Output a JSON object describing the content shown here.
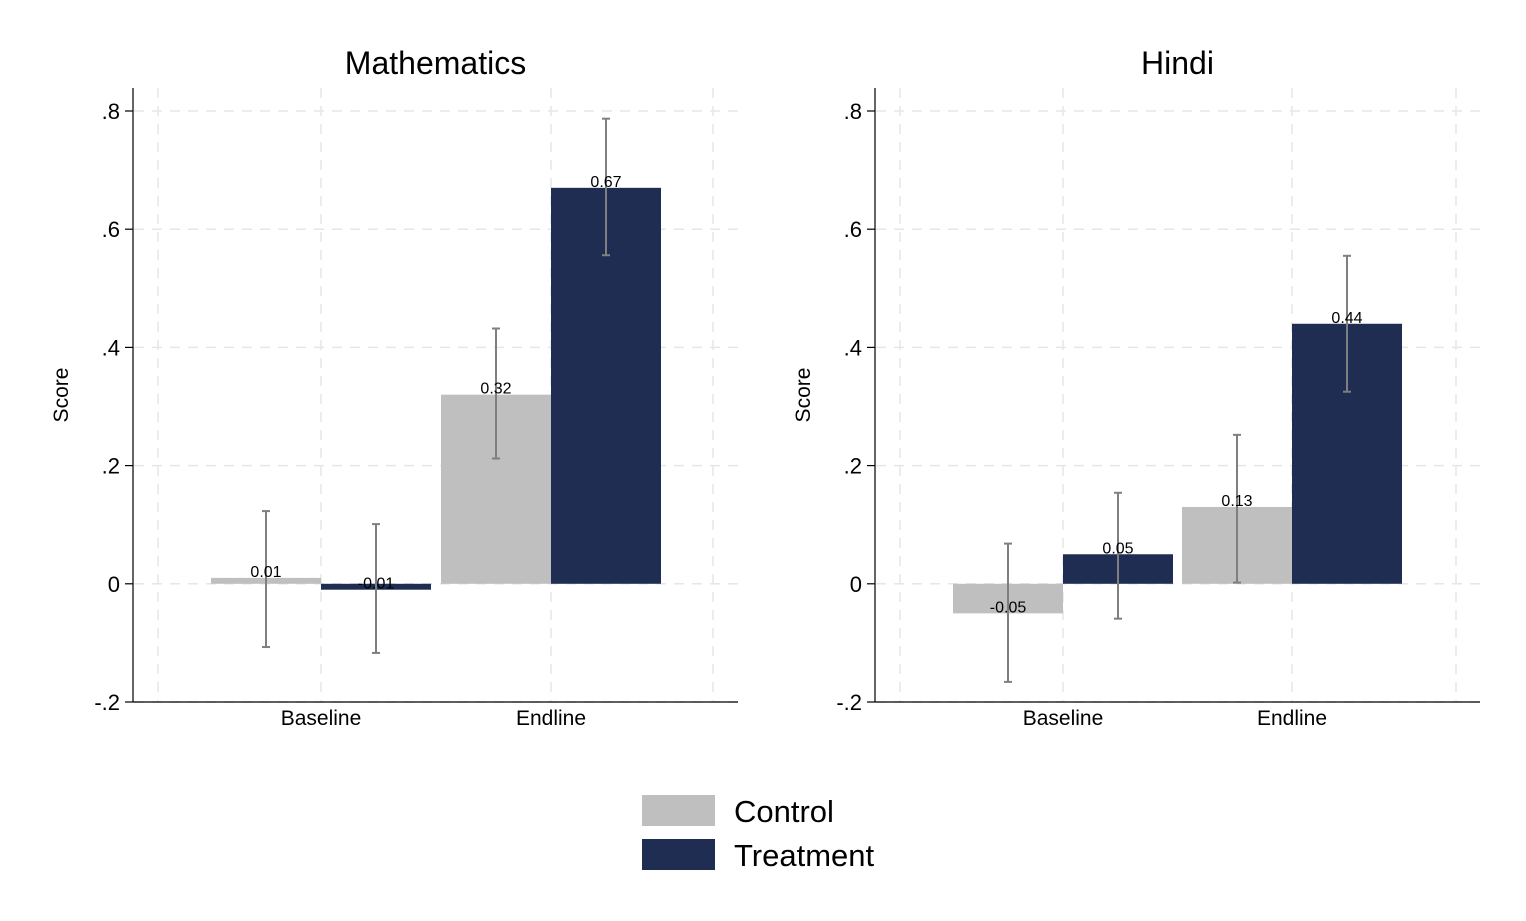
{
  "chart_data": [
    {
      "type": "bar",
      "title": "Mathematics",
      "ylabel": "Score",
      "xlabel": "",
      "categories": [
        "Baseline",
        "Endline"
      ],
      "ylim": [
        -0.2,
        0.8
      ],
      "yticks": [
        -0.2,
        0,
        0.2,
        0.4,
        0.6,
        0.8
      ],
      "ytick_labels": [
        "-.2",
        "0",
        ".2",
        ".4",
        ".6",
        ".8"
      ],
      "grid": true,
      "series": [
        {
          "name": "Control",
          "values": [
            0.01,
            0.32
          ],
          "labels": [
            "0.01",
            "0.32"
          ],
          "ci_low": [
            -0.107,
            0.212
          ],
          "ci_high": [
            0.123,
            0.432
          ]
        },
        {
          "name": "Treatment",
          "values": [
            -0.01,
            0.67
          ],
          "labels": [
            "-0.01",
            "0.67"
          ],
          "ci_low": [
            -0.117,
            0.556
          ],
          "ci_high": [
            0.101,
            0.787
          ]
        }
      ]
    },
    {
      "type": "bar",
      "title": "Hindi",
      "ylabel": "Score",
      "xlabel": "",
      "categories": [
        "Baseline",
        "Endline"
      ],
      "ylim": [
        -0.2,
        0.8
      ],
      "yticks": [
        -0.2,
        0,
        0.2,
        0.4,
        0.6,
        0.8
      ],
      "ytick_labels": [
        "-.2",
        "0",
        ".2",
        ".4",
        ".6",
        ".8"
      ],
      "grid": true,
      "series": [
        {
          "name": "Control",
          "values": [
            -0.05,
            0.13
          ],
          "labels": [
            "-0.05",
            "0.13"
          ],
          "ci_low": [
            -0.166,
            0.002
          ],
          "ci_high": [
            0.068,
            0.252
          ]
        },
        {
          "name": "Treatment",
          "values": [
            0.05,
            0.44
          ],
          "labels": [
            "0.05",
            "0.44"
          ],
          "ci_low": [
            -0.059,
            0.325
          ],
          "ci_high": [
            0.154,
            0.555
          ]
        }
      ]
    }
  ],
  "legend": {
    "position": "bottom-center",
    "items": [
      {
        "label": "Control",
        "color": "#bfbfbf"
      },
      {
        "label": "Treatment",
        "color": "#1f2d52"
      }
    ]
  },
  "colors": {
    "control": "#bfbfbf",
    "treatment": "#1f2d52",
    "error_bar": "#7f7f7f",
    "grid": "#e6e6e6"
  }
}
